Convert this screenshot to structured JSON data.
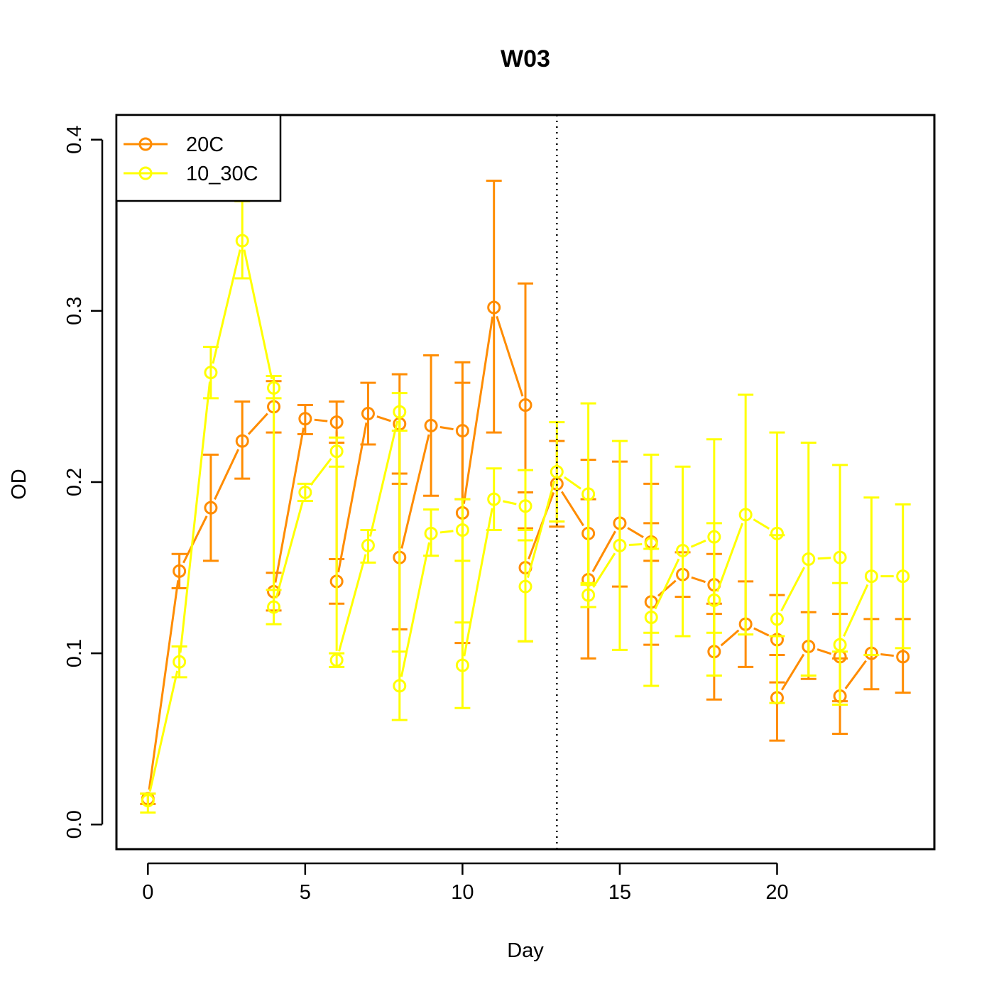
{
  "chart_data": {
    "type": "line",
    "title": "W03",
    "xlabel": "Day",
    "ylabel": "OD",
    "xlim": [
      -1,
      25
    ],
    "ylim": [
      -0.0144,
      0.4144
    ],
    "x_ticks": [
      0,
      5,
      10,
      15,
      20
    ],
    "y_ticks": [
      0.0,
      0.1,
      0.2,
      0.3,
      0.4
    ],
    "x_tick_labels": [
      "0",
      "5",
      "10",
      "15",
      "20"
    ],
    "y_tick_labels": [
      "0.0",
      "0.1",
      "0.2",
      "0.3",
      "0.4"
    ],
    "grid": false,
    "legend_position": "top-left",
    "vline": {
      "x": 13,
      "style": "dotted",
      "color": "#000000"
    },
    "series": [
      {
        "name": "20C",
        "color": "#ff8c00",
        "points": [
          {
            "x": 0,
            "y": 0.015,
            "lo": 0.012,
            "hi": 0.018
          },
          {
            "x": 1,
            "y": 0.148,
            "lo": 0.138,
            "hi": 0.158
          },
          {
            "x": 2,
            "y": 0.185,
            "lo": 0.154,
            "hi": 0.216
          },
          {
            "x": 3,
            "y": 0.224,
            "lo": 0.202,
            "hi": 0.247
          },
          {
            "x": 4,
            "y": 0.244,
            "lo": 0.229,
            "hi": 0.259
          },
          {
            "x": 4,
            "y": 0.136,
            "lo": 0.125,
            "hi": 0.147
          },
          {
            "x": 5,
            "y": 0.237,
            "lo": 0.228,
            "hi": 0.245
          },
          {
            "x": 6,
            "y": 0.235,
            "lo": 0.223,
            "hi": 0.247
          },
          {
            "x": 6,
            "y": 0.142,
            "lo": 0.129,
            "hi": 0.155
          },
          {
            "x": 7,
            "y": 0.24,
            "lo": 0.222,
            "hi": 0.258
          },
          {
            "x": 8,
            "y": 0.234,
            "lo": 0.205,
            "hi": 0.263
          },
          {
            "x": 8,
            "y": 0.156,
            "lo": 0.114,
            "hi": 0.199
          },
          {
            "x": 9,
            "y": 0.233,
            "lo": 0.192,
            "hi": 0.274
          },
          {
            "x": 10,
            "y": 0.23,
            "lo": 0.19,
            "hi": 0.27
          },
          {
            "x": 10,
            "y": 0.182,
            "lo": 0.106,
            "hi": 0.258
          },
          {
            "x": 11,
            "y": 0.302,
            "lo": 0.229,
            "hi": 0.376
          },
          {
            "x": 12,
            "y": 0.245,
            "lo": 0.173,
            "hi": 0.316
          },
          {
            "x": 12,
            "y": 0.15,
            "lo": 0.107,
            "hi": 0.194
          },
          {
            "x": 13,
            "y": 0.199,
            "lo": 0.174,
            "hi": 0.224
          },
          {
            "x": 14,
            "y": 0.17,
            "lo": 0.127,
            "hi": 0.213
          },
          {
            "x": 14,
            "y": 0.143,
            "lo": 0.097,
            "hi": 0.19
          },
          {
            "x": 15,
            "y": 0.176,
            "lo": 0.139,
            "hi": 0.212
          },
          {
            "x": 16,
            "y": 0.165,
            "lo": 0.154,
            "hi": 0.176
          },
          {
            "x": 16,
            "y": 0.13,
            "lo": 0.105,
            "hi": 0.199
          },
          {
            "x": 17,
            "y": 0.146,
            "lo": 0.133,
            "hi": 0.159
          },
          {
            "x": 18,
            "y": 0.14,
            "lo": 0.123,
            "hi": 0.158
          },
          {
            "x": 18,
            "y": 0.101,
            "lo": 0.073,
            "hi": 0.129
          },
          {
            "x": 19,
            "y": 0.117,
            "lo": 0.092,
            "hi": 0.142
          },
          {
            "x": 20,
            "y": 0.108,
            "lo": 0.083,
            "hi": 0.134
          },
          {
            "x": 20,
            "y": 0.074,
            "lo": 0.049,
            "hi": 0.099
          },
          {
            "x": 21,
            "y": 0.104,
            "lo": 0.085,
            "hi": 0.124
          },
          {
            "x": 22,
            "y": 0.098,
            "lo": 0.072,
            "hi": 0.123
          },
          {
            "x": 22,
            "y": 0.075,
            "lo": 0.053,
            "hi": 0.097
          },
          {
            "x": 23,
            "y": 0.1,
            "lo": 0.079,
            "hi": 0.12
          },
          {
            "x": 24,
            "y": 0.098,
            "lo": 0.077,
            "hi": 0.12
          }
        ]
      },
      {
        "name": "10_30C",
        "color": "#ffff00",
        "points": [
          {
            "x": 0,
            "y": 0.014,
            "lo": 0.007,
            "hi": 0.018
          },
          {
            "x": 1,
            "y": 0.095,
            "lo": 0.086,
            "hi": 0.104
          },
          {
            "x": 2,
            "y": 0.264,
            "lo": 0.249,
            "hi": 0.279
          },
          {
            "x": 3,
            "y": 0.341,
            "lo": 0.319,
            "hi": 0.364
          },
          {
            "x": 4,
            "y": 0.255,
            "lo": 0.249,
            "hi": 0.262
          },
          {
            "x": 4,
            "y": 0.127,
            "lo": 0.117,
            "hi": 0.137
          },
          {
            "x": 5,
            "y": 0.194,
            "lo": 0.189,
            "hi": 0.199
          },
          {
            "x": 6,
            "y": 0.218,
            "lo": 0.209,
            "hi": 0.226
          },
          {
            "x": 6,
            "y": 0.096,
            "lo": 0.092,
            "hi": 0.1
          },
          {
            "x": 7,
            "y": 0.163,
            "lo": 0.153,
            "hi": 0.172
          },
          {
            "x": 8,
            "y": 0.241,
            "lo": 0.23,
            "hi": 0.252
          },
          {
            "x": 8,
            "y": 0.081,
            "lo": 0.061,
            "hi": 0.101
          },
          {
            "x": 9,
            "y": 0.17,
            "lo": 0.157,
            "hi": 0.184
          },
          {
            "x": 10,
            "y": 0.172,
            "lo": 0.154,
            "hi": 0.19
          },
          {
            "x": 10,
            "y": 0.093,
            "lo": 0.068,
            "hi": 0.118
          },
          {
            "x": 11,
            "y": 0.19,
            "lo": 0.172,
            "hi": 0.208
          },
          {
            "x": 12,
            "y": 0.186,
            "lo": 0.166,
            "hi": 0.207
          },
          {
            "x": 12,
            "y": 0.139,
            "lo": 0.107,
            "hi": 0.172
          },
          {
            "x": 13,
            "y": 0.206,
            "lo": 0.177,
            "hi": 0.235
          },
          {
            "x": 14,
            "y": 0.193,
            "lo": 0.14,
            "hi": 0.246
          },
          {
            "x": 14,
            "y": 0.134,
            "lo": 0.127,
            "hi": 0.141
          },
          {
            "x": 15,
            "y": 0.163,
            "lo": 0.102,
            "hi": 0.224
          },
          {
            "x": 16,
            "y": 0.164,
            "lo": 0.112,
            "hi": 0.216
          },
          {
            "x": 16,
            "y": 0.121,
            "lo": 0.081,
            "hi": 0.161
          },
          {
            "x": 17,
            "y": 0.16,
            "lo": 0.11,
            "hi": 0.209
          },
          {
            "x": 18,
            "y": 0.168,
            "lo": 0.112,
            "hi": 0.225
          },
          {
            "x": 18,
            "y": 0.131,
            "lo": 0.087,
            "hi": 0.176
          },
          {
            "x": 19,
            "y": 0.181,
            "lo": 0.111,
            "hi": 0.251
          },
          {
            "x": 20,
            "y": 0.17,
            "lo": 0.11,
            "hi": 0.229
          },
          {
            "x": 20,
            "y": 0.12,
            "lo": 0.071,
            "hi": 0.169
          },
          {
            "x": 21,
            "y": 0.155,
            "lo": 0.087,
            "hi": 0.223
          },
          {
            "x": 22,
            "y": 0.156,
            "lo": 0.101,
            "hi": 0.21
          },
          {
            "x": 22,
            "y": 0.105,
            "lo": 0.07,
            "hi": 0.141
          },
          {
            "x": 23,
            "y": 0.145,
            "lo": 0.099,
            "hi": 0.191
          },
          {
            "x": 24,
            "y": 0.145,
            "lo": 0.103,
            "hi": 0.187
          }
        ]
      }
    ]
  }
}
